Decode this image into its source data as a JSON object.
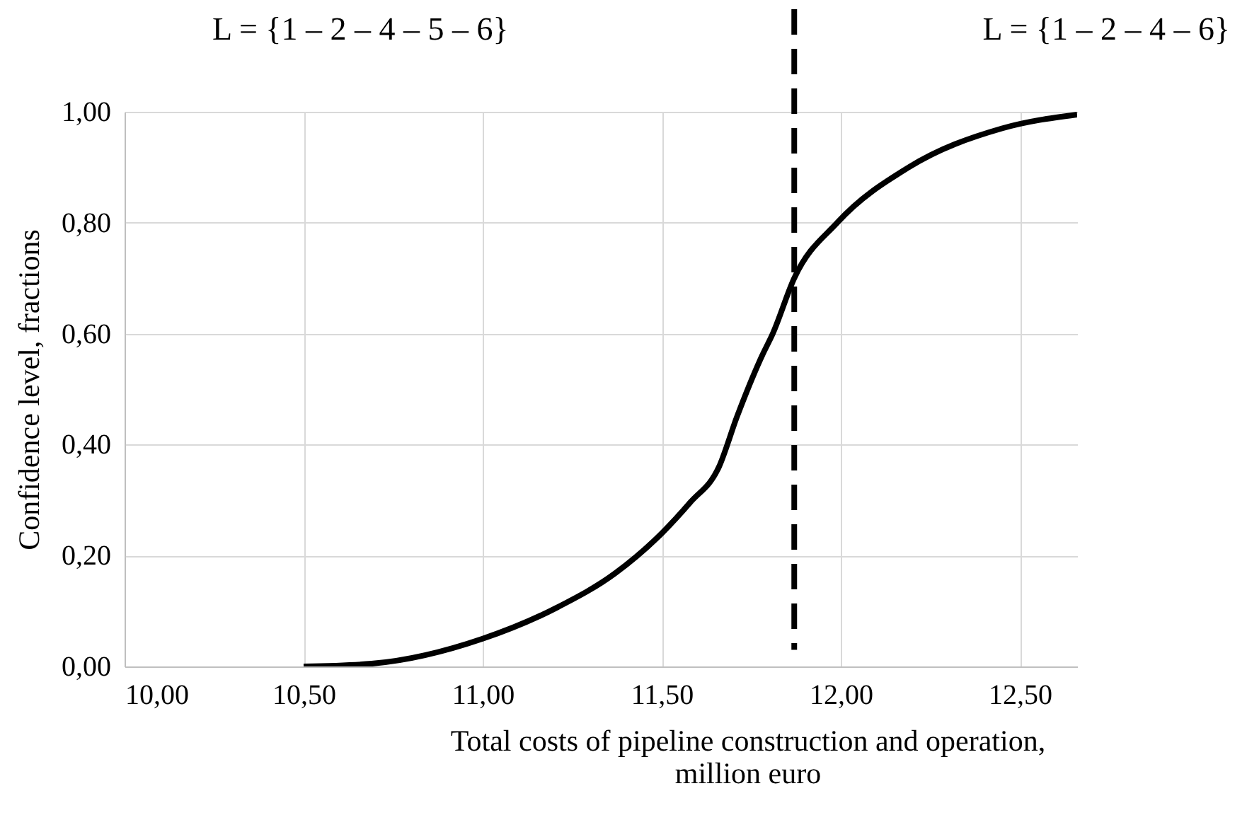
{
  "chart_data": {
    "type": "line",
    "xlabel": "Total costs of pipeline construction and operation, million euro",
    "ylabel": "Confidence level, fractions",
    "annotations": [
      "L = {1 – 2 – 4 – 5 – 6}",
      "L = {1 – 2 – 4 – 6}"
    ],
    "x": [
      10.5,
      10.69,
      11.0,
      11.21,
      11.37,
      11.5,
      11.58,
      11.66,
      11.71,
      11.78,
      11.81,
      11.87,
      11.99,
      12.19,
      12.45,
      12.66
    ],
    "series": [
      {
        "color": "#000000",
        "values": [
          0,
          0.005,
          0.05,
          0.107,
          0.168,
          0.24,
          0.296,
          0.36,
          0.45,
          0.56,
          0.6,
          0.7,
          0.8,
          0.9,
          0.97,
          0.995
        ]
      }
    ],
    "xlim": [
      10,
      12.66
    ],
    "xticks": [
      {
        "value": 10,
        "label": "10,00"
      },
      {
        "value": 10.5,
        "label": "10,50"
      },
      {
        "value": 11,
        "label": "11,00"
      },
      {
        "value": 11.5,
        "label": "11,50"
      },
      {
        "value": 12,
        "label": "12,00"
      },
      {
        "value": 12.5,
        "label": "12,50"
      }
    ],
    "ylim": [
      0,
      1
    ],
    "yticks": [
      {
        "value": 0,
        "label": "0,00"
      },
      {
        "value": 0.2,
        "label": "0,20"
      },
      {
        "value": 0.4,
        "label": "0,40"
      },
      {
        "value": 0.6,
        "label": "0,60"
      },
      {
        "value": 0.8,
        "label": "0,80"
      },
      {
        "value": 1,
        "label": "1,00"
      }
    ],
    "grid": true,
    "marker": "none",
    "line_style": "solid",
    "ref_lines": [
      {
        "axis": "x",
        "value": 11.87,
        "color": "#000000",
        "line_style": "dashed"
      }
    ]
  }
}
